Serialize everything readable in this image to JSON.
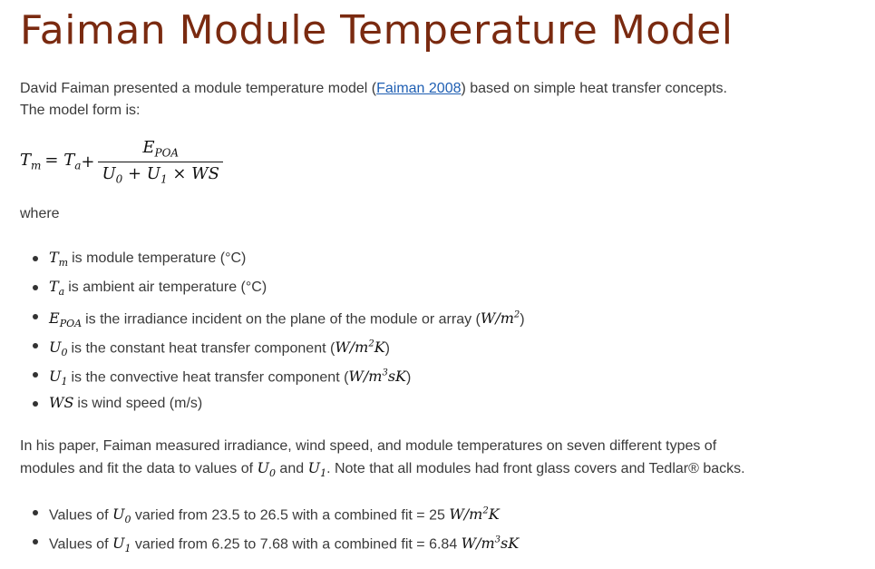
{
  "title": "Faiman Module Temperature Model",
  "intro": {
    "before_link": "David Faiman presented a module temperature model (",
    "link_text": "Faiman 2008",
    "after_link": ") based on simple heat transfer concepts.",
    "line2": "The model form is:"
  },
  "equation": {
    "lhs": "T",
    "lhs_sub": "m",
    "eq": " = T",
    "ta_sub": "a",
    "plus": " +",
    "numerator": "E",
    "numerator_sub": "POA",
    "denominator_u0": "U",
    "denominator_u0_sub": "0",
    "denominator_plus": " + U",
    "denominator_u1_sub": "1",
    "denominator_rest": " × WS"
  },
  "where_label": "where",
  "definitions": [
    {
      "sym": "T",
      "sub": "m",
      "text": "is module temperature (°C)"
    },
    {
      "sym": "T",
      "sub": "a",
      "text": "is ambient air temperature (°C)"
    },
    {
      "sym": "E",
      "sub": "POA",
      "text": "is the irradiance incident on the plane of the module or array (",
      "unit": "W/m",
      "unit_sup": "2",
      "unit_tail": ")"
    },
    {
      "sym": "U",
      "sub": "0",
      "text": "is the constant heat transfer component (",
      "unit": "W/m",
      "unit_sup": "2",
      "unit_tail2": "K",
      "close": ")"
    },
    {
      "sym": "U",
      "sub": "1",
      "text": "is the convective heat transfer component (",
      "unit": "W/m",
      "unit_sup": "3",
      "unit_tail2": "sK",
      "close": ")"
    },
    {
      "sym": "WS",
      "text": "is wind speed (m/s)"
    }
  ],
  "paragraph2": {
    "line1": "In his paper, Faiman measured irradiance, wind speed, and module temperatures on seven different types of",
    "line2_a": "modules and fit the data to values of ",
    "u0": "U",
    "u0_sub": "0",
    "and": " and ",
    "u1": "U",
    "u1_sub": "1",
    "line2_b": ".  Note that all modules had front glass covers and Tedlar® backs."
  },
  "fits": [
    {
      "pre": "Values of ",
      "sym": "U",
      "sub": "0",
      "mid": " varied from 23.5 to 26.5 with a combined fit = 25 ",
      "unit": "W/m",
      "unit_sup": "2",
      "unit_tail": "K"
    },
    {
      "pre": "Values of ",
      "sym": "U",
      "sub": "1",
      "mid": " varied from 6.25 to 7.68 with a combined fit = 6.84 ",
      "unit": "W/m",
      "unit_sup": "3",
      "unit_tail": "sK"
    }
  ]
}
